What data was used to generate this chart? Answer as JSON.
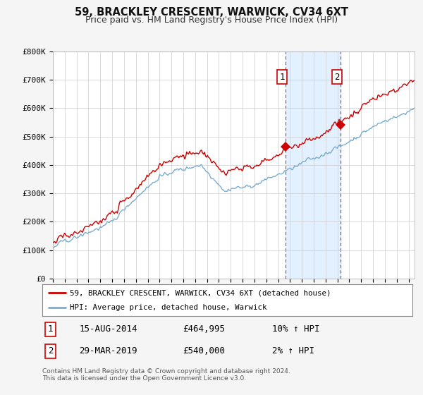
{
  "title": "59, BRACKLEY CRESCENT, WARWICK, CV34 6XT",
  "subtitle": "Price paid vs. HM Land Registry's House Price Index (HPI)",
  "ylabel_ticks": [
    "£0",
    "£100K",
    "£200K",
    "£300K",
    "£400K",
    "£500K",
    "£600K",
    "£700K",
    "£800K"
  ],
  "ylim": [
    0,
    800000
  ],
  "xlim_start": 1995.0,
  "xlim_end": 2025.5,
  "transaction1_x": 2014.625,
  "transaction1_y": 464995,
  "transaction2_x": 2019.24,
  "transaction2_y": 540000,
  "transaction1_date": "15-AUG-2014",
  "transaction1_price": "£464,995",
  "transaction1_hpi": "10% ↑ HPI",
  "transaction2_date": "29-MAR-2019",
  "transaction2_price": "£540,000",
  "transaction2_hpi": "2% ↑ HPI",
  "line_color_property": "#cc0000",
  "line_color_hpi": "#7aadcf",
  "shaded_color": "#ddeeff",
  "vline_color": "#cc3333",
  "legend_label_property": "59, BRACKLEY CRESCENT, WARWICK, CV34 6XT (detached house)",
  "legend_label_hpi": "HPI: Average price, detached house, Warwick",
  "footer": "Contains HM Land Registry data © Crown copyright and database right 2024.\nThis data is licensed under the Open Government Licence v3.0.",
  "background_color": "#f5f5f5",
  "plot_bg_color": "#ffffff"
}
